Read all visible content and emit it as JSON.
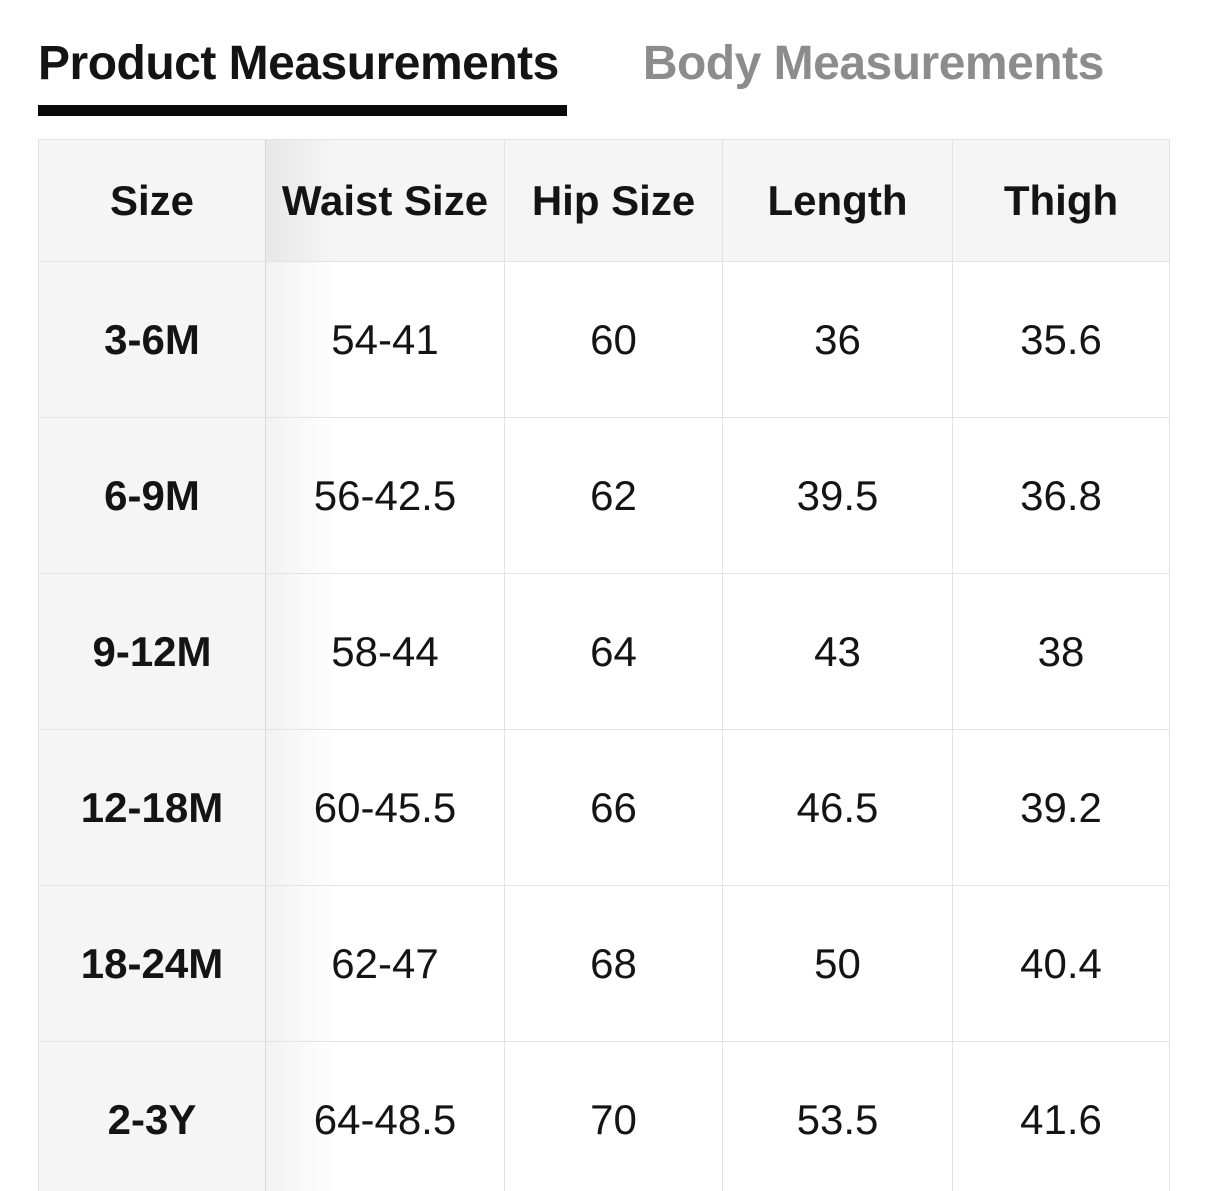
{
  "tabs": [
    {
      "label": "Product Measurements",
      "active": true
    },
    {
      "label": "Body Measurements",
      "active": false
    }
  ],
  "table": {
    "columns": [
      "Size",
      "Waist Size",
      "Hip Size",
      "Length",
      "Thigh"
    ],
    "rows": [
      {
        "cells": [
          "3-6M",
          "54-41",
          "60",
          "36",
          "35.6"
        ]
      },
      {
        "cells": [
          "6-9M",
          "56-42.5",
          "62",
          "39.5",
          "36.8"
        ]
      },
      {
        "cells": [
          "9-12M",
          "58-44",
          "64",
          "43",
          "38"
        ]
      },
      {
        "cells": [
          "12-18M",
          "60-45.5",
          "66",
          "46.5",
          "39.2"
        ]
      },
      {
        "cells": [
          "18-24M",
          "62-47",
          "68",
          "50",
          "40.4"
        ]
      },
      {
        "cells": [
          "2-3Y",
          "64-48.5",
          "70",
          "53.5",
          "41.6"
        ]
      }
    ]
  },
  "colors": {
    "active_tab_text": "#141414",
    "inactive_tab_text": "#8c8c8c",
    "active_tab_underline": "#0a0a0a",
    "header_row_background": "#f5f5f5",
    "sticky_column_background": "#f5f5f5",
    "grid_border": "#e3e3e3",
    "cell_text": "#141414"
  }
}
